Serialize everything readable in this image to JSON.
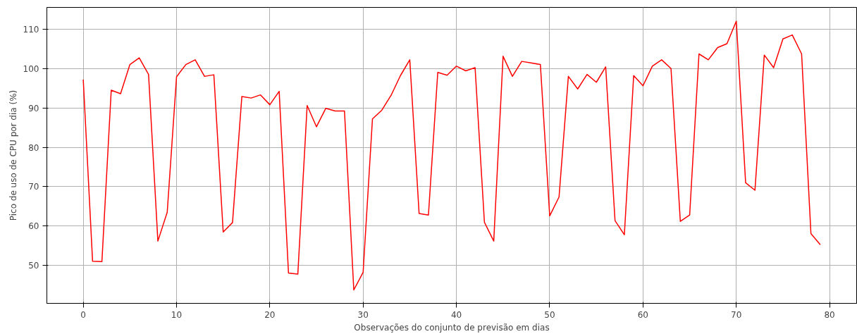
{
  "chart_data": {
    "type": "line",
    "xlabel": "Observações do conjunto de previsão em dias",
    "ylabel": "Pico de uso de CPU por dia (%)",
    "x": [
      0,
      1,
      2,
      3,
      4,
      5,
      6,
      7,
      8,
      9,
      10,
      11,
      12,
      13,
      14,
      15,
      16,
      17,
      18,
      19,
      20,
      21,
      22,
      23,
      24,
      25,
      26,
      27,
      28,
      29,
      30,
      31,
      32,
      33,
      34,
      35,
      36,
      37,
      38,
      39,
      40,
      41,
      42,
      43,
      44,
      45,
      46,
      47,
      48,
      49,
      50,
      51,
      52,
      53,
      54,
      55,
      56,
      57,
      58,
      59,
      60,
      61,
      62,
      63,
      64,
      65,
      66,
      67,
      68,
      69,
      70,
      71,
      72,
      73,
      74,
      75,
      76,
      77,
      78,
      79
    ],
    "series": [
      {
        "color": "#ff0000",
        "values": [
          97.2,
          51.1,
          51.0,
          94.5,
          93.6,
          101.0,
          102.7,
          98.5,
          56.2,
          63.5,
          97.9,
          101.0,
          102.2,
          98.0,
          98.4,
          58.5,
          60.9,
          92.9,
          92.5,
          93.3,
          90.8,
          94.2,
          48.1,
          47.8,
          90.6,
          85.2,
          89.9,
          89.2,
          89.2,
          43.8,
          48.3,
          87.2,
          89.4,
          93.2,
          98.2,
          102.2,
          63.2,
          62.8,
          99.0,
          98.3,
          100.6,
          99.4,
          100.2,
          61.0,
          56.2,
          103.1,
          98.0,
          101.8,
          101.4,
          101.0,
          62.6,
          67.4,
          98.0,
          94.8,
          98.5,
          96.5,
          100.4,
          61.4,
          57.8,
          98.2,
          95.6,
          100.6,
          102.2,
          100.0,
          61.2,
          62.8,
          103.7,
          102.2,
          105.3,
          106.3,
          112.0,
          71.0,
          69.1,
          103.4,
          100.2,
          107.5,
          108.5,
          103.7,
          58.1,
          55.3
        ]
      }
    ],
    "xlim": [
      -3.9,
      82.9
    ],
    "ylim": [
      40.4,
      115.5
    ],
    "xticks": [
      0,
      10,
      20,
      30,
      40,
      50,
      60,
      70,
      80
    ],
    "yticks": [
      50,
      60,
      70,
      80,
      90,
      100,
      110
    ],
    "grid": true,
    "marker": "none",
    "line_style": "solid"
  }
}
